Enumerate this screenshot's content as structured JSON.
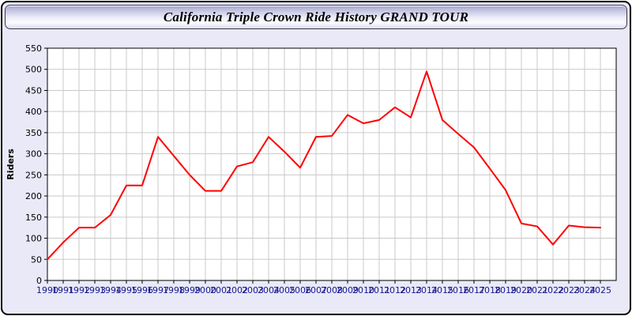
{
  "window": {
    "title": "California Triple Crown Ride History GRAND TOUR"
  },
  "colors": {
    "window_bg": "#e9e9f8",
    "plot_bg": "#ffffff",
    "grid": "#c9c9c9",
    "axis": "#000000",
    "line": "#ff0000",
    "x_label": "#16168c",
    "y_label": "#000000"
  },
  "chart_data": {
    "type": "line",
    "title": "California Triple Crown Ride History GRAND TOUR",
    "xlabel": "",
    "ylabel": "Riders",
    "x": [
      1990,
      1991,
      1992,
      1993,
      1994,
      1995,
      1996,
      1997,
      1998,
      1999,
      2000,
      2001,
      2002,
      2003,
      2004,
      2005,
      2006,
      2007,
      2008,
      2009,
      2010,
      2011,
      2012,
      2013,
      2014,
      2015,
      2016,
      2017,
      2018,
      2019,
      2020,
      2021,
      2022,
      2023,
      2024,
      2025
    ],
    "series": [
      {
        "name": "Riders",
        "color": "#ff0000",
        "values": [
          50,
          90,
          125,
          125,
          155,
          225,
          225,
          340,
          295,
          250,
          212,
          212,
          270,
          280,
          340,
          305,
          267,
          340,
          342,
          392,
          372,
          380,
          410,
          386,
          495,
          380,
          347,
          315,
          265,
          214,
          135,
          128,
          85,
          130,
          126,
          125
        ]
      }
    ],
    "ylim": [
      0,
      550
    ],
    "ytick_step": 50,
    "grid": true,
    "legend_position": "none"
  }
}
